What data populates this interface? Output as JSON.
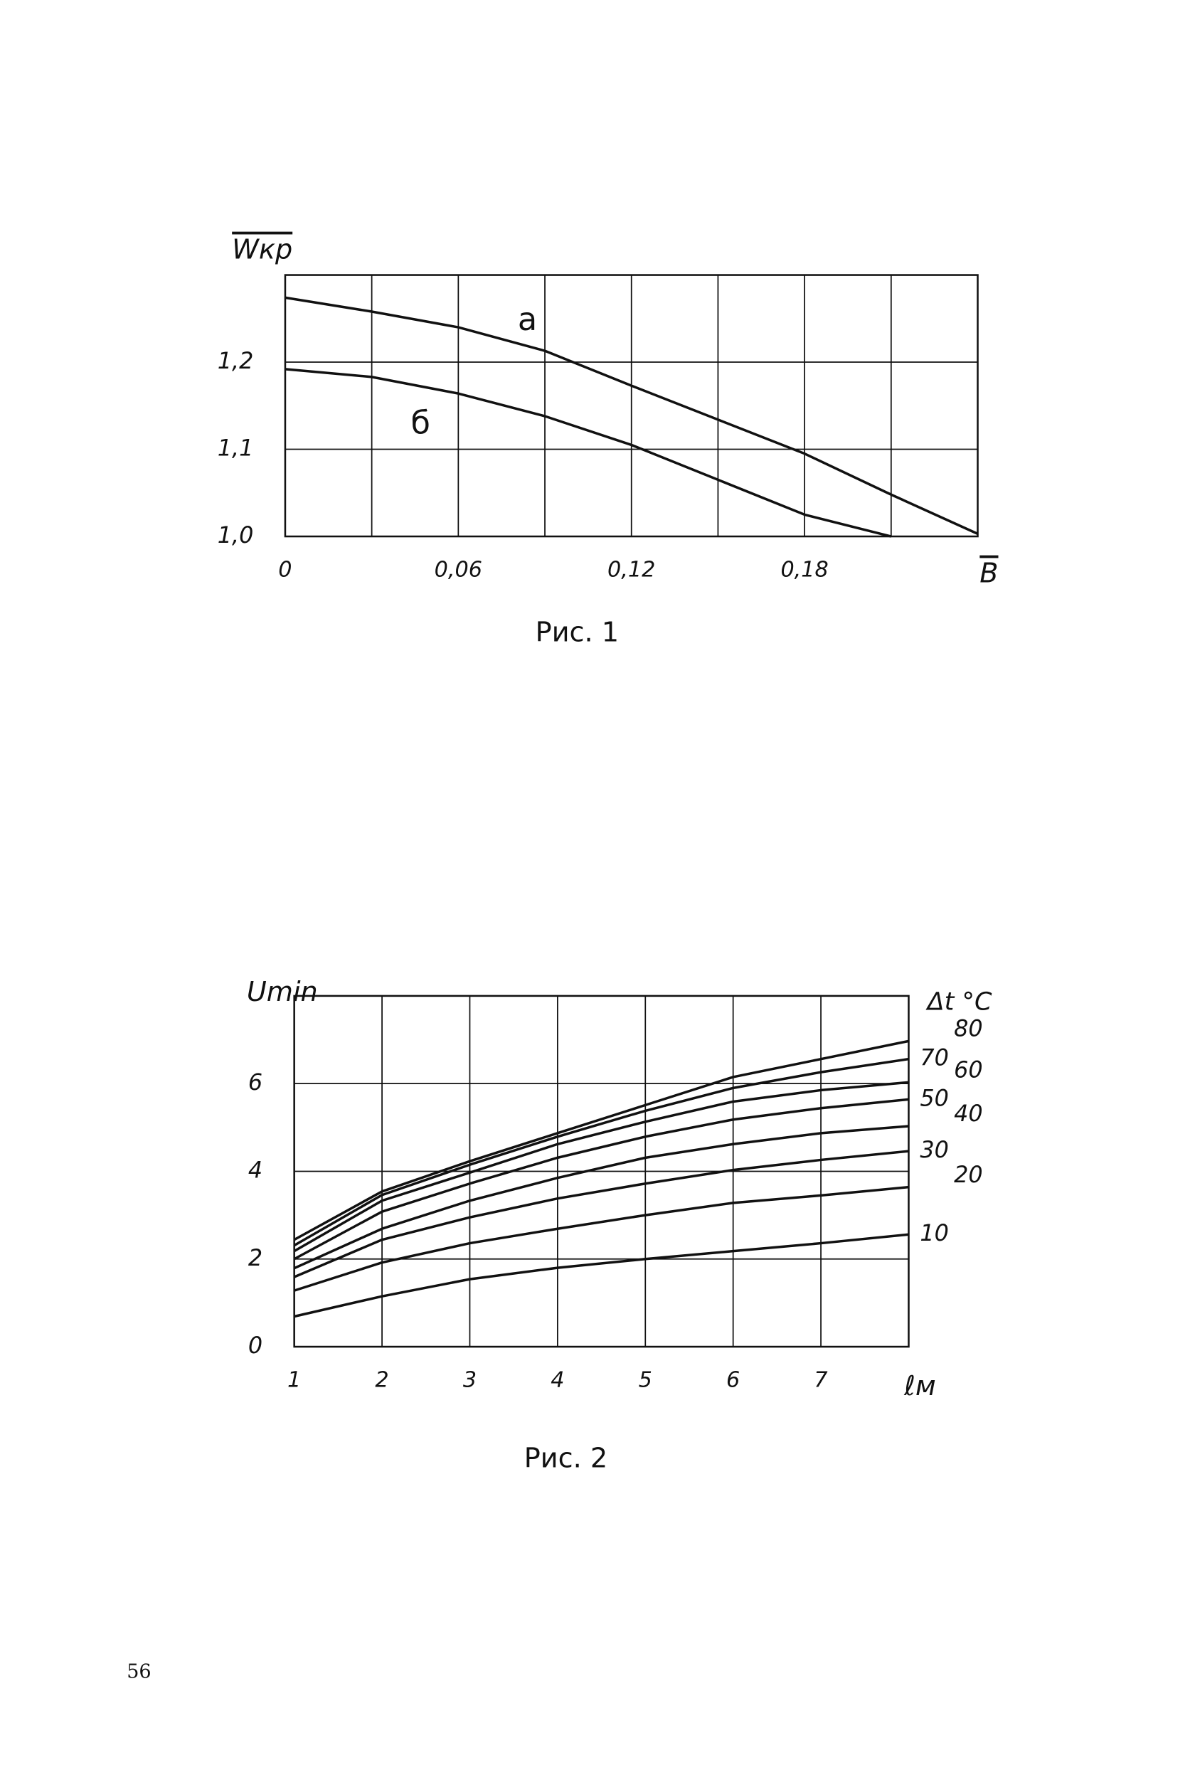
{
  "chart_data": [
    {
      "type": "line",
      "caption": "Рис. 1",
      "y_label": "Wкр",
      "x_label": "B",
      "x": [
        0,
        0.03,
        0.06,
        0.09,
        0.12,
        0.15,
        0.18,
        0.21,
        0.24
      ],
      "series": [
        {
          "name": "а",
          "color": "#111111",
          "values": [
            1.274,
            1.258,
            1.24,
            1.213,
            1.173,
            1.134,
            1.095,
            1.048,
            1.003
          ]
        },
        {
          "name": "б",
          "color": "#111111",
          "values": [
            1.192,
            1.183,
            1.164,
            1.138,
            1.105,
            1.065,
            1.025,
            1.0,
            null
          ]
        }
      ],
      "xlim": [
        0,
        0.24
      ],
      "ylim": [
        1.0,
        1.3
      ],
      "xticks": [
        0,
        {
          "value": 0.06,
          "label": "0,06"
        },
        {
          "value": 0.12,
          "label": "0,12"
        },
        {
          "value": 0.18,
          "label": "0,18"
        }
      ],
      "yticks": [
        {
          "value": 1.0,
          "label": "1,0"
        },
        {
          "value": 1.1,
          "label": "1,1"
        },
        {
          "value": 1.2,
          "label": "1,2"
        }
      ],
      "xgrid": [
        0.03,
        0.06,
        0.09,
        0.12,
        0.15,
        0.18,
        0.21
      ],
      "ygrid": [
        1.1,
        1.2
      ]
    },
    {
      "type": "line",
      "caption": "Рис. 2",
      "y_label": "Umin",
      "x_label": "ℓм",
      "legend_title": "Δt °C",
      "x": [
        1,
        2,
        3,
        4,
        5,
        6,
        7,
        8
      ],
      "series": [
        {
          "name": "10",
          "color": "#111111",
          "values": [
            0.69,
            1.15,
            1.54,
            1.8,
            2.0,
            2.18,
            2.36,
            2.56
          ]
        },
        {
          "name": "20",
          "color": "#111111",
          "values": [
            1.28,
            1.92,
            2.36,
            2.69,
            3.0,
            3.28,
            3.45,
            3.64
          ]
        },
        {
          "name": "30",
          "color": "#111111",
          "values": [
            1.59,
            2.44,
            2.95,
            3.38,
            3.72,
            4.03,
            4.26,
            4.46
          ]
        },
        {
          "name": "40",
          "color": "#111111",
          "values": [
            1.79,
            2.69,
            3.33,
            3.85,
            4.31,
            4.62,
            4.87,
            5.03
          ]
        },
        {
          "name": "50",
          "color": "#111111",
          "values": [
            2.0,
            3.08,
            3.72,
            4.31,
            4.79,
            5.18,
            5.44,
            5.64
          ]
        },
        {
          "name": "60",
          "color": "#111111",
          "values": [
            2.18,
            3.33,
            3.97,
            4.62,
            5.13,
            5.59,
            5.85,
            6.03
          ]
        },
        {
          "name": "70",
          "color": "#111111",
          "values": [
            2.31,
            3.46,
            4.15,
            4.79,
            5.38,
            5.9,
            6.26,
            6.56
          ]
        },
        {
          "name": "80",
          "color": "#111111",
          "values": [
            2.44,
            3.54,
            4.23,
            4.87,
            5.51,
            6.15,
            6.56,
            6.97
          ]
        }
      ],
      "xlim": [
        1,
        8
      ],
      "ylim": [
        0,
        8
      ],
      "xticks": [
        1,
        2,
        3,
        4,
        5,
        6,
        7
      ],
      "yticks": [
        0,
        2,
        4,
        6
      ],
      "xgrid": [
        2,
        3,
        4,
        5,
        6,
        7
      ],
      "ygrid": [
        2,
        4,
        6
      ]
    }
  ],
  "page_number": "56"
}
